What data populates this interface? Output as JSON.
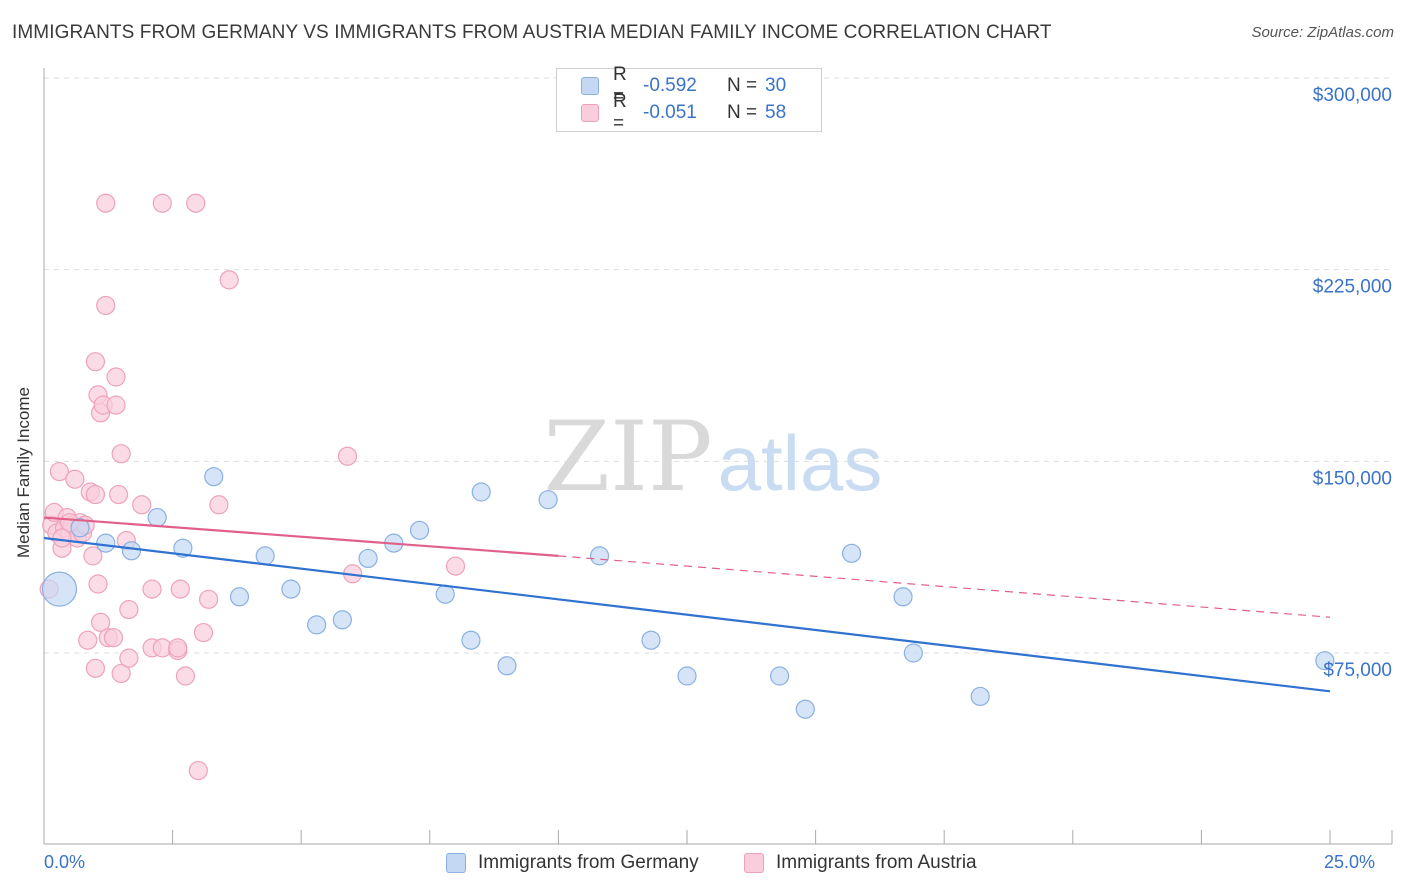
{
  "header": {
    "title": "IMMIGRANTS FROM GERMANY VS IMMIGRANTS FROM AUSTRIA MEDIAN FAMILY INCOME CORRELATION CHART",
    "source": "Source: ZipAtlas.com"
  },
  "watermark": {
    "zip": "ZIP",
    "atlas": "atlas"
  },
  "legend": {
    "germany": {
      "r_label": "R = ",
      "r_value": "-0.592",
      "n_label": "N = ",
      "n_value": "30"
    },
    "austria": {
      "r_label": "R = ",
      "r_value": "-0.051",
      "n_label": "N = ",
      "n_value": "58"
    }
  },
  "colors": {
    "germany_fill": "#c5d8f3",
    "germany_stroke": "#8ab0e3",
    "germany_line": "#2f72d0",
    "austria_fill": "#f9cddb",
    "austria_stroke": "#eea1bb",
    "austria_line": "#e0608a",
    "axis_text": "#3a73c9",
    "grid": "#dedede"
  },
  "chart_data": {
    "type": "scatter",
    "title": "IMMIGRANTS FROM GERMANY VS IMMIGRANTS FROM AUSTRIA MEDIAN FAMILY INCOME CORRELATION CHART",
    "xlabel": "",
    "ylabel": "Median Family Income",
    "xlim": [
      0,
      25
    ],
    "ylim": [
      0,
      300000
    ],
    "x_tick_labels": [
      "0.0%",
      "25.0%"
    ],
    "y_ticks": [
      75000,
      150000,
      225000,
      300000
    ],
    "y_tick_labels": [
      "$75,000",
      "$150,000",
      "$225,000",
      "$300,000"
    ],
    "grid": true,
    "series": [
      {
        "name": "Immigrants from Germany",
        "R": -0.592,
        "N": 30,
        "trend": {
          "x_start": 0,
          "y_start": 120000,
          "x_end": 25,
          "y_end": 60000
        },
        "points": [
          {
            "x": 0.3,
            "y": 100000,
            "big": true
          },
          {
            "x": 0.7,
            "y": 124000
          },
          {
            "x": 1.2,
            "y": 118000
          },
          {
            "x": 1.7,
            "y": 115000
          },
          {
            "x": 2.2,
            "y": 128000
          },
          {
            "x": 2.7,
            "y": 116000
          },
          {
            "x": 3.3,
            "y": 144000
          },
          {
            "x": 3.8,
            "y": 97000
          },
          {
            "x": 4.3,
            "y": 113000
          },
          {
            "x": 4.8,
            "y": 100000
          },
          {
            "x": 5.3,
            "y": 86000
          },
          {
            "x": 5.8,
            "y": 88000
          },
          {
            "x": 6.3,
            "y": 112000
          },
          {
            "x": 6.8,
            "y": 118000
          },
          {
            "x": 7.3,
            "y": 123000
          },
          {
            "x": 7.8,
            "y": 98000
          },
          {
            "x": 8.3,
            "y": 80000
          },
          {
            "x": 8.5,
            "y": 138000
          },
          {
            "x": 9.0,
            "y": 70000
          },
          {
            "x": 9.8,
            "y": 135000
          },
          {
            "x": 10.8,
            "y": 113000
          },
          {
            "x": 11.8,
            "y": 80000
          },
          {
            "x": 12.5,
            "y": 66000
          },
          {
            "x": 14.3,
            "y": 66000
          },
          {
            "x": 14.8,
            "y": 53000
          },
          {
            "x": 15.7,
            "y": 114000
          },
          {
            "x": 16.7,
            "y": 97000
          },
          {
            "x": 16.9,
            "y": 75000
          },
          {
            "x": 18.2,
            "y": 58000
          },
          {
            "x": 24.9,
            "y": 72000
          }
        ]
      },
      {
        "name": "Immigrants from Austria",
        "R": -0.051,
        "N": 58,
        "trend": {
          "x_start": 0,
          "y_start": 128000,
          "x_end": 10.0,
          "y_end": 113000
        },
        "trend_dashed": {
          "x_start": 10.0,
          "y_start": 113000,
          "x_end": 25,
          "y_end": 89000
        },
        "points": [
          {
            "x": 0.1,
            "y": 100000
          },
          {
            "x": 0.15,
            "y": 125000
          },
          {
            "x": 0.2,
            "y": 130000
          },
          {
            "x": 0.25,
            "y": 122000
          },
          {
            "x": 0.3,
            "y": 146000
          },
          {
            "x": 0.35,
            "y": 116000
          },
          {
            "x": 0.4,
            "y": 124000
          },
          {
            "x": 0.45,
            "y": 128000
          },
          {
            "x": 0.5,
            "y": 122000
          },
          {
            "x": 0.55,
            "y": 125000
          },
          {
            "x": 0.6,
            "y": 143000
          },
          {
            "x": 0.65,
            "y": 120000
          },
          {
            "x": 0.7,
            "y": 126000
          },
          {
            "x": 0.75,
            "y": 122000
          },
          {
            "x": 0.8,
            "y": 125000
          },
          {
            "x": 0.85,
            "y": 80000
          },
          {
            "x": 0.9,
            "y": 138000
          },
          {
            "x": 0.95,
            "y": 113000
          },
          {
            "x": 1.0,
            "y": 69000
          },
          {
            "x": 1.0,
            "y": 189000
          },
          {
            "x": 1.05,
            "y": 176000
          },
          {
            "x": 1.0,
            "y": 137000
          },
          {
            "x": 1.05,
            "y": 102000
          },
          {
            "x": 1.1,
            "y": 87000
          },
          {
            "x": 1.1,
            "y": 169000
          },
          {
            "x": 1.15,
            "y": 172000
          },
          {
            "x": 1.2,
            "y": 211000
          },
          {
            "x": 1.2,
            "y": 251000
          },
          {
            "x": 1.25,
            "y": 81000
          },
          {
            "x": 1.35,
            "y": 81000
          },
          {
            "x": 1.4,
            "y": 172000
          },
          {
            "x": 1.4,
            "y": 183000
          },
          {
            "x": 1.45,
            "y": 137000
          },
          {
            "x": 1.5,
            "y": 153000
          },
          {
            "x": 1.5,
            "y": 67000
          },
          {
            "x": 1.6,
            "y": 119000
          },
          {
            "x": 1.65,
            "y": 92000
          },
          {
            "x": 1.65,
            "y": 73000
          },
          {
            "x": 1.9,
            "y": 133000
          },
          {
            "x": 2.1,
            "y": 100000
          },
          {
            "x": 2.1,
            "y": 77000
          },
          {
            "x": 2.3,
            "y": 251000
          },
          {
            "x": 2.3,
            "y": 77000
          },
          {
            "x": 2.6,
            "y": 76000
          },
          {
            "x": 2.65,
            "y": 100000
          },
          {
            "x": 2.75,
            "y": 66000
          },
          {
            "x": 2.95,
            "y": 251000
          },
          {
            "x": 3.0,
            "y": 29000
          },
          {
            "x": 3.1,
            "y": 83000
          },
          {
            "x": 3.2,
            "y": 96000
          },
          {
            "x": 3.4,
            "y": 133000
          },
          {
            "x": 3.6,
            "y": 221000
          },
          {
            "x": 6.0,
            "y": 106000
          },
          {
            "x": 5.9,
            "y": 152000
          },
          {
            "x": 8.0,
            "y": 109000
          },
          {
            "x": 0.5,
            "y": 126000
          },
          {
            "x": 0.35,
            "y": 120000
          },
          {
            "x": 2.6,
            "y": 77000
          }
        ]
      }
    ]
  },
  "bottom_legend": {
    "germany_label": "Immigrants from Germany",
    "austria_label": "Immigrants from Austria"
  }
}
